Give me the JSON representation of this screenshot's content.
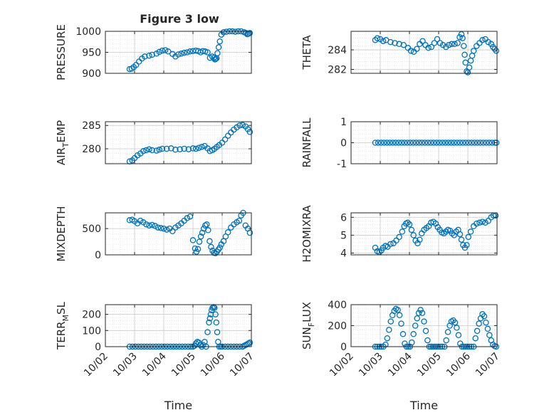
{
  "figure_title": "Figure 3 low",
  "colors": {
    "marker": "#0072BD",
    "axis": "#262626",
    "grid": "#dcdcdc"
  },
  "chart_data": [
    {
      "type": "scatter",
      "panel": "pressure",
      "ylabel": "PRESSURE",
      "ylim": [
        900,
        1000
      ],
      "yticks": [
        900,
        950,
        1000
      ],
      "ytick_labels": [
        "900",
        "950",
        "1000"
      ],
      "xlim": [
        0,
        5
      ],
      "grid": true,
      "x": [
        0.83,
        0.9,
        0.97,
        1.05,
        1.15,
        1.25,
        1.35,
        1.5,
        1.6,
        1.75,
        1.85,
        1.95,
        2.05,
        2.15,
        2.3,
        2.4,
        2.5,
        2.6,
        2.7,
        2.8,
        2.9,
        3.0,
        3.1,
        3.18,
        3.26,
        3.34,
        3.42,
        3.5,
        3.58,
        3.66,
        3.72,
        3.75,
        3.78,
        3.81,
        3.84,
        3.88,
        3.92,
        3.97,
        4.05,
        4.15,
        4.25,
        4.35,
        4.45,
        4.55,
        4.65,
        4.75,
        4.82,
        4.86,
        4.9,
        4.95
      ],
      "y": [
        910,
        911,
        915,
        920,
        928,
        935,
        940,
        942,
        944,
        947,
        951,
        954,
        955,
        952,
        946,
        940,
        945,
        947,
        949,
        950,
        952,
        953,
        954,
        953,
        950,
        953,
        952,
        950,
        937,
        940,
        937,
        933,
        934,
        936,
        948,
        962,
        976,
        992,
        998,
        999,
        1000,
        1000,
        999,
        1000,
        1000,
        998,
        996,
        993,
        994,
        996
      ]
    },
    {
      "type": "scatter",
      "panel": "theta",
      "ylabel": "THETA",
      "ylim": [
        281.6,
        285.9
      ],
      "yticks": [
        282,
        284
      ],
      "ytick_labels": [
        "282",
        "284"
      ],
      "xlim": [
        0,
        5
      ],
      "grid": true,
      "x": [
        0.83,
        0.9,
        1.0,
        1.1,
        1.2,
        1.35,
        1.5,
        1.65,
        1.8,
        1.95,
        2.05,
        2.15,
        2.25,
        2.35,
        2.45,
        2.55,
        2.65,
        2.75,
        2.85,
        2.95,
        3.05,
        3.15,
        3.25,
        3.35,
        3.45,
        3.55,
        3.65,
        3.72,
        3.78,
        3.82,
        3.86,
        3.89,
        3.92,
        3.96,
        4.0,
        4.05,
        4.1,
        4.15,
        4.2,
        4.3,
        4.4,
        4.5,
        4.6,
        4.7,
        4.8,
        4.86,
        4.92,
        4.97
      ],
      "y": [
        285.0,
        285.2,
        285.1,
        284.9,
        285.0,
        284.8,
        284.7,
        284.6,
        284.5,
        284.2,
        283.9,
        283.8,
        284.1,
        284.6,
        284.9,
        284.5,
        284.2,
        284.3,
        284.7,
        285.1,
        284.7,
        284.5,
        284.3,
        284.5,
        284.6,
        284.6,
        284.7,
        285.3,
        285.6,
        285.2,
        284.4,
        283.5,
        282.7,
        281.8,
        281.7,
        282.2,
        282.9,
        283.4,
        283.9,
        284.4,
        284.7,
        285.0,
        285.1,
        284.8,
        284.6,
        284.3,
        284.1,
        283.9
      ]
    },
    {
      "type": "scatter",
      "panel": "air_temp",
      "ylabel": "AIR_TEMP",
      "ylim": [
        276.8,
        285.8
      ],
      "yticks": [
        280,
        285
      ],
      "ytick_labels": [
        "280",
        "285"
      ],
      "xlim": [
        0,
        5
      ],
      "grid": true,
      "x": [
        0.83,
        0.92,
        1.0,
        1.1,
        1.2,
        1.3,
        1.4,
        1.5,
        1.6,
        1.75,
        1.85,
        1.95,
        2.1,
        2.25,
        2.4,
        2.55,
        2.7,
        2.85,
        3.0,
        3.1,
        3.2,
        3.3,
        3.4,
        3.5,
        3.58,
        3.66,
        3.74,
        3.82,
        3.9,
        4.0,
        4.1,
        4.2,
        4.3,
        4.4,
        4.5,
        4.6,
        4.7,
        4.8,
        4.88,
        4.95
      ],
      "y": [
        277.3,
        277.5,
        278.0,
        278.6,
        279.0,
        279.5,
        279.7,
        279.9,
        279.7,
        279.6,
        279.8,
        280.0,
        280.0,
        280.1,
        279.8,
        279.9,
        280.0,
        279.9,
        280.1,
        280.0,
        280.2,
        280.4,
        280.6,
        280.1,
        279.5,
        279.7,
        280.0,
        280.4,
        280.8,
        281.3,
        282.0,
        282.8,
        283.5,
        284.1,
        284.6,
        285.0,
        285.1,
        284.8,
        284.2,
        283.6
      ]
    },
    {
      "type": "scatter",
      "panel": "rainfall",
      "ylabel": "RAINFALL",
      "ylim": [
        -1,
        1
      ],
      "yticks": [
        -1,
        0,
        1
      ],
      "ytick_labels": [
        "-1",
        "0",
        "1"
      ],
      "xlim": [
        0,
        5
      ],
      "grid": true,
      "x": [
        0.83,
        0.93,
        1.03,
        1.13,
        1.23,
        1.33,
        1.43,
        1.53,
        1.63,
        1.73,
        1.83,
        1.93,
        2.03,
        2.13,
        2.23,
        2.33,
        2.43,
        2.53,
        2.63,
        2.73,
        2.83,
        2.93,
        3.03,
        3.13,
        3.23,
        3.33,
        3.43,
        3.53,
        3.63,
        3.73,
        3.83,
        3.93,
        4.03,
        4.13,
        4.23,
        4.33,
        4.43,
        4.53,
        4.63,
        4.73,
        4.83,
        4.93,
        4.98
      ],
      "y": [
        0,
        0,
        0,
        0,
        0,
        0,
        0,
        0,
        0,
        0,
        0,
        0,
        0,
        0,
        0,
        0,
        0,
        0,
        0,
        0,
        0,
        0,
        0,
        0,
        0,
        0,
        0,
        0,
        0,
        0,
        0,
        0,
        0,
        0,
        0,
        0,
        0,
        0,
        0,
        0,
        0,
        0,
        0
      ]
    },
    {
      "type": "scatter",
      "panel": "mixdepth",
      "ylabel": "MIXDEPTH",
      "ylim": [
        0,
        800
      ],
      "yticks": [
        0,
        500
      ],
      "ytick_labels": [
        "0",
        "500"
      ],
      "xlim": [
        0,
        5
      ],
      "grid": true,
      "x": [
        0.83,
        0.92,
        1.0,
        1.1,
        1.2,
        1.3,
        1.4,
        1.5,
        1.6,
        1.7,
        1.8,
        1.9,
        2.0,
        2.1,
        2.2,
        2.3,
        2.4,
        2.5,
        2.6,
        2.7,
        2.8,
        2.9,
        3.0,
        3.07,
        3.12,
        3.17,
        3.22,
        3.27,
        3.32,
        3.37,
        3.42,
        3.47,
        3.52,
        3.57,
        3.62,
        3.67,
        3.72,
        3.77,
        3.82,
        3.87,
        3.92,
        3.97,
        4.05,
        4.12,
        4.2,
        4.3,
        4.4,
        4.5,
        4.58,
        4.65,
        4.72,
        4.8,
        4.88,
        4.95
      ],
      "y": [
        660,
        670,
        640,
        600,
        650,
        620,
        580,
        560,
        570,
        550,
        520,
        510,
        500,
        480,
        500,
        450,
        520,
        560,
        600,
        650,
        700,
        730,
        280,
        120,
        60,
        110,
        250,
        350,
        420,
        500,
        560,
        580,
        470,
        260,
        150,
        80,
        40,
        30,
        60,
        100,
        140,
        200,
        260,
        350,
        430,
        520,
        580,
        620,
        650,
        750,
        800,
        560,
        500,
        420
      ]
    },
    {
      "type": "scatter",
      "panel": "h2omixra",
      "ylabel": "H2OMIXRA",
      "ylim": [
        3.9,
        6.25
      ],
      "yticks": [
        4,
        5,
        6
      ],
      "ytick_labels": [
        "4",
        "5",
        "6"
      ],
      "xlim": [
        0,
        5
      ],
      "grid": true,
      "x": [
        0.83,
        0.9,
        0.97,
        1.04,
        1.1,
        1.18,
        1.25,
        1.35,
        1.45,
        1.55,
        1.65,
        1.75,
        1.82,
        1.88,
        1.94,
        2.0,
        2.07,
        2.14,
        2.21,
        2.28,
        2.35,
        2.42,
        2.5,
        2.58,
        2.66,
        2.74,
        2.82,
        2.9,
        2.97,
        3.04,
        3.11,
        3.18,
        3.25,
        3.32,
        3.39,
        3.46,
        3.53,
        3.6,
        3.67,
        3.73,
        3.78,
        3.84,
        3.9,
        3.96,
        4.02,
        4.1,
        4.2,
        4.3,
        4.4,
        4.5,
        4.6,
        4.7,
        4.8,
        4.88,
        4.95
      ],
      "y": [
        4.3,
        4.1,
        4.05,
        4.15,
        4.3,
        4.4,
        4.35,
        4.5,
        4.55,
        4.7,
        4.9,
        5.2,
        5.5,
        5.65,
        5.7,
        5.6,
        5.3,
        5.0,
        4.7,
        4.55,
        4.75,
        5.1,
        5.3,
        5.4,
        5.5,
        5.7,
        5.75,
        5.65,
        5.45,
        5.3,
        5.15,
        5.1,
        5.2,
        5.3,
        5.25,
        5.1,
        5.0,
        5.2,
        5.3,
        5.05,
        4.75,
        4.45,
        4.3,
        4.45,
        4.9,
        5.2,
        5.5,
        5.65,
        5.7,
        5.75,
        5.7,
        5.8,
        6.0,
        6.1,
        6.1
      ]
    },
    {
      "type": "scatter",
      "panel": "terr_msl",
      "ylabel": "TERR_MSL",
      "ylim": [
        0,
        260
      ],
      "yticks": [
        0,
        100,
        200
      ],
      "ytick_labels": [
        "0",
        "100",
        "200"
      ],
      "xlim": [
        0,
        5
      ],
      "grid": true,
      "x": [
        0.83,
        0.93,
        1.03,
        1.13,
        1.23,
        1.33,
        1.43,
        1.53,
        1.63,
        1.73,
        1.83,
        1.93,
        2.03,
        2.13,
        2.23,
        2.33,
        2.43,
        2.53,
        2.63,
        2.73,
        2.83,
        2.93,
        3.0,
        3.05,
        3.1,
        3.15,
        3.2,
        3.25,
        3.3,
        3.35,
        3.4,
        3.45,
        3.5,
        3.55,
        3.58,
        3.61,
        3.64,
        3.67,
        3.71,
        3.74,
        3.77,
        3.8,
        3.83,
        3.86,
        3.9,
        3.95,
        4.0,
        4.1,
        4.2,
        4.3,
        4.4,
        4.5,
        4.6,
        4.7,
        4.75,
        4.8,
        4.85,
        4.9,
        4.95
      ],
      "y": [
        0,
        0,
        0,
        0,
        0,
        0,
        0,
        0,
        0,
        0,
        0,
        0,
        0,
        0,
        0,
        0,
        0,
        0,
        0,
        0,
        0,
        0,
        0,
        5,
        20,
        30,
        25,
        10,
        0,
        10,
        30,
        0,
        90,
        150,
        175,
        200,
        225,
        240,
        245,
        240,
        200,
        150,
        90,
        30,
        0,
        0,
        0,
        0,
        0,
        0,
        0,
        0,
        0,
        0,
        5,
        10,
        15,
        20,
        25
      ]
    },
    {
      "type": "scatter",
      "panel": "sun_flux",
      "ylabel": "SUN_FLUX",
      "ylim": [
        0,
        400
      ],
      "yticks": [
        0,
        200,
        400
      ],
      "ytick_labels": [
        "0",
        "200",
        "400"
      ],
      "xlim": [
        0,
        5
      ],
      "grid": true,
      "x": [
        0.83,
        0.9,
        0.97,
        1.04,
        1.11,
        1.18,
        1.24,
        1.3,
        1.36,
        1.42,
        1.48,
        1.54,
        1.6,
        1.66,
        1.72,
        1.78,
        1.84,
        1.9,
        1.96,
        2.02,
        2.08,
        2.14,
        2.2,
        2.26,
        2.32,
        2.38,
        2.44,
        2.5,
        2.56,
        2.62,
        2.68,
        2.74,
        2.8,
        2.86,
        2.92,
        2.98,
        3.05,
        3.12,
        3.2,
        3.26,
        3.32,
        3.38,
        3.44,
        3.5,
        3.56,
        3.62,
        3.68,
        3.74,
        3.8,
        3.86,
        3.92,
        3.98,
        4.05,
        4.12,
        4.2,
        4.26,
        4.32,
        4.38,
        4.44,
        4.5,
        4.56,
        4.62,
        4.68,
        4.74,
        4.8,
        4.86,
        4.92,
        4.97
      ],
      "y": [
        0,
        0,
        0,
        0,
        0,
        20,
        80,
        160,
        240,
        300,
        340,
        360,
        350,
        300,
        220,
        120,
        30,
        0,
        0,
        0,
        40,
        120,
        200,
        270,
        320,
        350,
        320,
        240,
        150,
        60,
        0,
        0,
        0,
        0,
        0,
        0,
        0,
        0,
        0,
        60,
        140,
        200,
        240,
        250,
        230,
        180,
        110,
        30,
        0,
        0,
        0,
        0,
        0,
        0,
        0,
        80,
        150,
        220,
        270,
        310,
        290,
        230,
        170,
        110,
        60,
        20,
        5,
        0
      ]
    }
  ],
  "xaxis": {
    "tick_labels": [
      "10/02",
      "10/03",
      "10/04",
      "10/05",
      "10/06",
      "10/07"
    ],
    "label": "Time"
  }
}
